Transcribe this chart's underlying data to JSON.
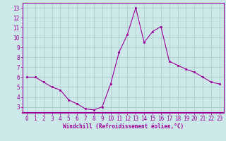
{
  "x": [
    0,
    1,
    2,
    3,
    4,
    5,
    6,
    7,
    8,
    9,
    10,
    11,
    12,
    13,
    14,
    15,
    16,
    17,
    18,
    19,
    20,
    21,
    22,
    23
  ],
  "y": [
    6.0,
    6.0,
    5.5,
    5.0,
    4.7,
    3.7,
    3.3,
    2.8,
    2.7,
    3.0,
    5.3,
    8.5,
    10.3,
    13.0,
    9.5,
    10.6,
    11.1,
    7.6,
    7.2,
    6.8,
    6.5,
    6.0,
    5.5,
    5.3
  ],
  "line_color": "#9b009b",
  "marker": "s",
  "marker_size": 1.8,
  "line_width": 0.8,
  "xlabel": "Windchill (Refroidissement éolien,°C)",
  "xlabel_fontsize": 5.5,
  "ylabel_ticks": [
    3,
    4,
    5,
    6,
    7,
    8,
    9,
    10,
    11,
    12,
    13
  ],
  "xticks": [
    0,
    1,
    2,
    3,
    4,
    5,
    6,
    7,
    8,
    9,
    10,
    11,
    12,
    13,
    14,
    15,
    16,
    17,
    18,
    19,
    20,
    21,
    22,
    23
  ],
  "ylim": [
    2.4,
    13.5
  ],
  "xlim": [
    -0.5,
    23.5
  ],
  "background_color": "#cce8e8",
  "grid_color": "#aac8c8",
  "tick_fontsize": 5.5,
  "spine_color": "#9b009b"
}
